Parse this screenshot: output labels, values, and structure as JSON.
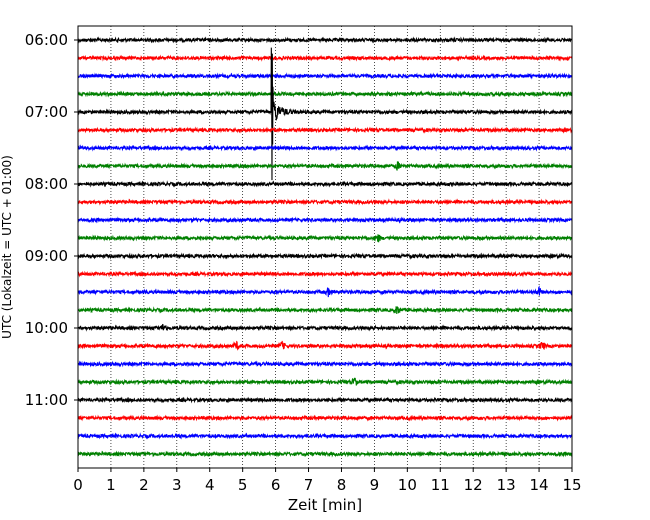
{
  "chart_data": {
    "type": "line",
    "title": "",
    "xlabel": "Zeit  [min]",
    "ylabel": "UTC (Lokalzeit = UTC + 01:00)",
    "xlim": [
      0,
      15
    ],
    "x_ticks": [
      0,
      1,
      2,
      3,
      4,
      5,
      6,
      7,
      8,
      9,
      10,
      11,
      12,
      13,
      14,
      15
    ],
    "y_tick_labels": [
      "06:00",
      "07:00",
      "08:00",
      "09:00",
      "10:00",
      "11:00"
    ],
    "grid": "vertical dotted at each minute",
    "trace_interval_min": 15,
    "trace_color_cycle": [
      "#000000",
      "#ff0000",
      "#0000ff",
      "#008000"
    ],
    "series": [
      {
        "start": "06:00",
        "color": "#000000"
      },
      {
        "start": "06:15",
        "color": "#ff0000"
      },
      {
        "start": "06:30",
        "color": "#0000ff"
      },
      {
        "start": "06:45",
        "color": "#008000"
      },
      {
        "start": "07:00",
        "color": "#000000",
        "events": [
          {
            "minute": 5.9,
            "amplitude": "large"
          }
        ]
      },
      {
        "start": "07:15",
        "color": "#ff0000"
      },
      {
        "start": "07:30",
        "color": "#0000ff"
      },
      {
        "start": "07:45",
        "color": "#008000",
        "events": [
          {
            "minute": 9.7,
            "amplitude": "small"
          }
        ]
      },
      {
        "start": "08:00",
        "color": "#000000"
      },
      {
        "start": "08:15",
        "color": "#ff0000"
      },
      {
        "start": "08:30",
        "color": "#0000ff"
      },
      {
        "start": "08:45",
        "color": "#008000",
        "events": [
          {
            "minute": 9.1,
            "amplitude": "small"
          }
        ]
      },
      {
        "start": "09:00",
        "color": "#000000"
      },
      {
        "start": "09:15",
        "color": "#ff0000"
      },
      {
        "start": "09:30",
        "color": "#0000ff",
        "events": [
          {
            "minute": 7.6,
            "amplitude": "small"
          },
          {
            "minute": 14.0,
            "amplitude": "small"
          }
        ]
      },
      {
        "start": "09:45",
        "color": "#008000",
        "events": [
          {
            "minute": 9.7,
            "amplitude": "small"
          }
        ]
      },
      {
        "start": "10:00",
        "color": "#000000",
        "events": [
          {
            "minute": 2.6,
            "amplitude": "small"
          }
        ]
      },
      {
        "start": "10:15",
        "color": "#ff0000",
        "events": [
          {
            "minute": 4.8,
            "amplitude": "small"
          },
          {
            "minute": 6.2,
            "amplitude": "small"
          },
          {
            "minute": 14.1,
            "amplitude": "small"
          }
        ]
      },
      {
        "start": "10:30",
        "color": "#0000ff"
      },
      {
        "start": "10:45",
        "color": "#008000",
        "events": [
          {
            "minute": 8.4,
            "amplitude": "small"
          }
        ]
      },
      {
        "start": "11:00",
        "color": "#000000"
      },
      {
        "start": "11:15",
        "color": "#ff0000"
      },
      {
        "start": "11:30",
        "color": "#0000ff"
      },
      {
        "start": "11:45",
        "color": "#008000"
      }
    ]
  }
}
